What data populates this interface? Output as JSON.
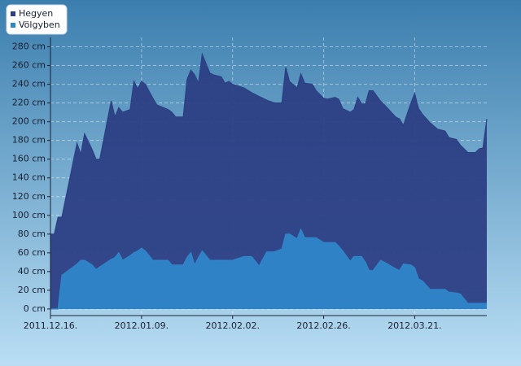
{
  "chart_data": {
    "type": "area",
    "x": [
      "2011.12.16.",
      "2011.12.17.",
      "2011.12.18.",
      "2011.12.19.",
      "2011.12.23.",
      "2011.12.24.",
      "2011.12.25.",
      "2011.12.27.",
      "2011.12.28.",
      "2011.12.29.",
      "2012.01.01.",
      "2012.01.02.",
      "2012.01.03.",
      "2012.01.04.",
      "2012.01.06.",
      "2012.01.07.",
      "2012.01.08.",
      "2012.01.09.",
      "2012.01.10.",
      "2012.01.12.",
      "2012.01.13.",
      "2012.01.16.",
      "2012.01.17.",
      "2012.01.18.",
      "2012.01.20.",
      "2012.01.21.",
      "2012.01.22.",
      "2012.01.23.",
      "2012.01.24.",
      "2012.01.25.",
      "2012.01.27.",
      "2012.01.28.",
      "2012.01.30.",
      "2012.01.31.",
      "2012.02.01.",
      "2012.02.02.",
      "2012.02.05.",
      "2012.02.07.",
      "2012.02.09.",
      "2012.02.11.",
      "2012.02.13.",
      "2012.02.15.",
      "2012.02.16.",
      "2012.02.17.",
      "2012.02.19.",
      "2012.02.20.",
      "2012.02.21.",
      "2012.02.23.",
      "2012.02.24.",
      "2012.02.26.",
      "2012.02.27.",
      "2012.02.29.",
      "2012.03.01.",
      "2012.03.02.",
      "2012.03.04.",
      "2012.03.05.",
      "2012.03.06.",
      "2012.03.07.",
      "2012.03.08.",
      "2012.03.09.",
      "2012.03.10.",
      "2012.03.12.",
      "2012.03.13.",
      "2012.03.16.",
      "2012.03.17.",
      "2012.03.18.",
      "2012.03.20.",
      "2012.03.21.",
      "2012.03.22.",
      "2012.03.23.",
      "2012.03.25.",
      "2012.03.27.",
      "2012.03.29.",
      "2012.03.30.",
      "2012.04.01.",
      "2012.04.02.",
      "2012.04.04.",
      "2012.04.06.",
      "2012.04.07.",
      "2012.04.08.",
      "2012.04.09."
    ],
    "series": [
      {
        "name": "Hegyen",
        "color": "#2c3f84",
        "values": [
          80,
          80,
          98,
          98,
          177,
          165,
          187,
          170,
          160,
          160,
          222,
          205,
          215,
          210,
          213,
          243,
          235,
          243,
          240,
          225,
          218,
          213,
          210,
          205,
          205,
          245,
          255,
          250,
          241,
          272,
          252,
          250,
          248,
          241,
          243,
          240,
          236,
          231,
          227,
          223,
          220,
          220,
          258,
          243,
          236,
          251,
          241,
          240,
          233,
          225,
          224,
          226,
          224,
          214,
          210,
          213,
          226,
          219,
          219,
          233,
          233,
          222,
          218,
          205,
          203,
          196,
          220,
          230,
          214,
          208,
          199,
          192,
          190,
          183,
          181,
          175,
          167,
          167,
          171,
          172,
          203
        ]
      },
      {
        "name": "Völgyben",
        "color": "#2f86c9",
        "values": [
          0,
          0,
          0,
          36,
          48,
          52,
          52,
          47,
          42,
          45,
          53,
          55,
          60,
          52,
          57,
          60,
          62,
          65,
          62,
          52,
          52,
          52,
          47,
          47,
          47,
          55,
          60,
          47,
          55,
          62,
          52,
          52,
          52,
          52,
          52,
          52,
          56,
          56,
          46,
          61,
          61,
          64,
          80,
          80,
          75,
          85,
          76,
          76,
          76,
          71,
          71,
          71,
          67,
          62,
          51,
          56,
          56,
          56,
          50,
          41,
          41,
          52,
          50,
          43,
          41,
          48,
          47,
          44,
          32,
          30,
          21,
          21,
          21,
          18,
          17,
          16,
          6,
          6,
          6,
          6,
          6
        ]
      }
    ],
    "xlim": [
      "2011.12.16.",
      "2012.04.09."
    ],
    "xticks": [
      "2011.12.16.",
      "2012.01.09.",
      "2012.02.02.",
      "2012.02.26.",
      "2012.03.21."
    ],
    "ylim": [
      -7,
      290
    ],
    "yticks": [
      {
        "value": 0,
        "label": "0 cm"
      },
      {
        "value": 20,
        "label": "20 cm"
      },
      {
        "value": 40,
        "label": "40 cm"
      },
      {
        "value": 60,
        "label": "60 cm"
      },
      {
        "value": 80,
        "label": "80 cm"
      },
      {
        "value": 100,
        "label": "100 cm"
      },
      {
        "value": 120,
        "label": "120 cm"
      },
      {
        "value": 140,
        "label": "140 cm"
      },
      {
        "value": 160,
        "label": "160 cm"
      },
      {
        "value": 180,
        "label": "180 cm"
      },
      {
        "value": 200,
        "label": "200 cm"
      },
      {
        "value": 220,
        "label": "220 cm"
      },
      {
        "value": 240,
        "label": "240 cm"
      },
      {
        "value": 260,
        "label": "260 cm"
      },
      {
        "value": 280,
        "label": "280 cm"
      }
    ],
    "grid": true,
    "legend": "top-left"
  }
}
